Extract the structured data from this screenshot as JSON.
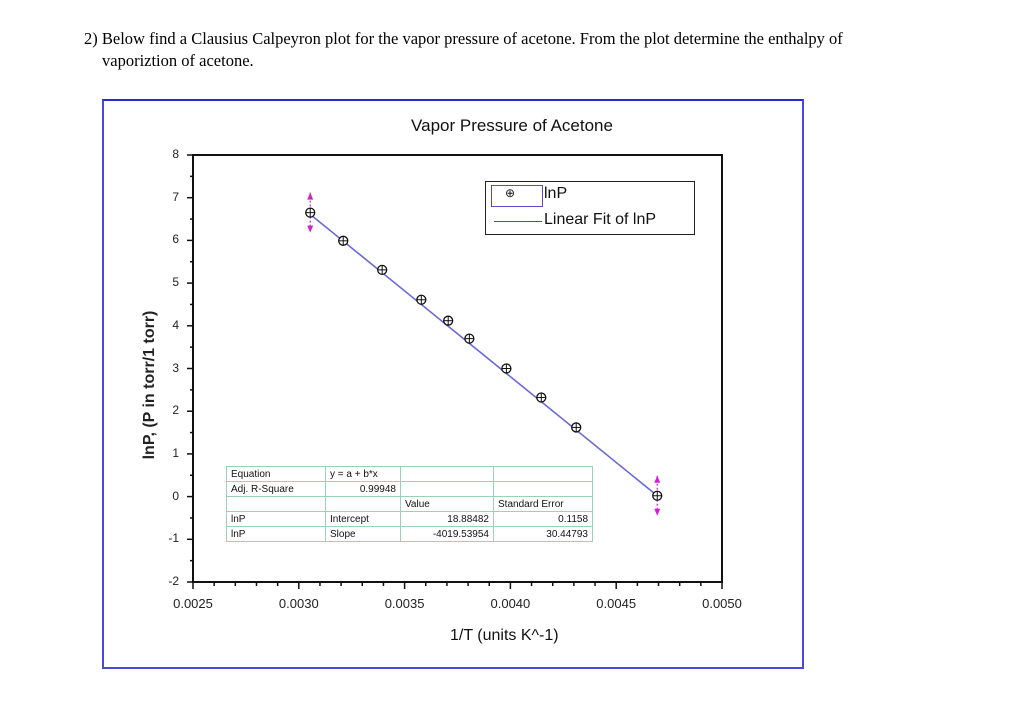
{
  "question": {
    "line1": "2) Below find a Clausius Calpeyron plot for the vapor pressure of acetone.  From the plot determine the enthalpy of",
    "line2": "vaporiztion of acetone."
  },
  "chart": {
    "title": "Vapor Pressure of Acetone",
    "xlabel": "1/T (units K^-1)",
    "ylabel": "lnP, (P in torr/1 torr)",
    "xticks": [
      "0.0025",
      "0.0030",
      "0.0035",
      "0.0040",
      "0.0045",
      "0.0050"
    ],
    "yticks": [
      "8",
      "7",
      "6",
      "5",
      "4",
      "3",
      "2",
      "1",
      "0",
      "-1",
      "-2"
    ],
    "legend": {
      "series_label": "lnP",
      "fit_label": "Linear Fit of lnP",
      "marker_symbol": "⊕"
    },
    "colors": {
      "frame": "#4a4ad8",
      "fit_line": "#6a6ad8",
      "marker_edge": "#111111",
      "marker_highlight": "#d020d0"
    }
  },
  "fit_table": {
    "equation_label": "Equation",
    "equation_value": "y = a + b*x",
    "adj_r_label": "Adj. R-Square",
    "adj_r_value": "0.99948",
    "header_value": "Value",
    "header_stderr": "Standard Error",
    "rows": [
      {
        "series": "lnP",
        "param": "Intercept",
        "value": "18.88482",
        "stderr": "0.1158"
      },
      {
        "series": "lnP",
        "param": "Slope",
        "value": "-4019.53954",
        "stderr": "30.44793"
      }
    ]
  },
  "chart_data": {
    "type": "scatter",
    "title": "Vapor Pressure of Acetone",
    "xlabel": "1/T (units K^-1)",
    "ylabel": "lnP, (P in torr/1 torr)",
    "xlim": [
      0.0025,
      0.005
    ],
    "ylim": [
      -2,
      8
    ],
    "grid": false,
    "legend_position": "upper right",
    "series": [
      {
        "name": "lnP",
        "x": [
          0.003054,
          0.00321,
          0.003394,
          0.003579,
          0.003706,
          0.003806,
          0.003981,
          0.004146,
          0.004311,
          0.004694
        ],
        "y": [
          6.65,
          5.99,
          5.31,
          4.61,
          4.12,
          3.7,
          3.0,
          2.32,
          1.62,
          0.02
        ]
      },
      {
        "name": "Linear Fit of lnP",
        "type": "line",
        "x": [
          0.003054,
          0.004694
        ],
        "y": [
          6.61,
          0.02
        ],
        "intercept": 18.88482,
        "slope": -4019.53954
      }
    ],
    "annotations": [
      "Equation: y = a + b*x",
      "Adj. R-Square: 0.99948",
      "Intercept: 18.88482 ± 0.1158",
      "Slope: -4019.53954 ± 30.44793"
    ]
  }
}
